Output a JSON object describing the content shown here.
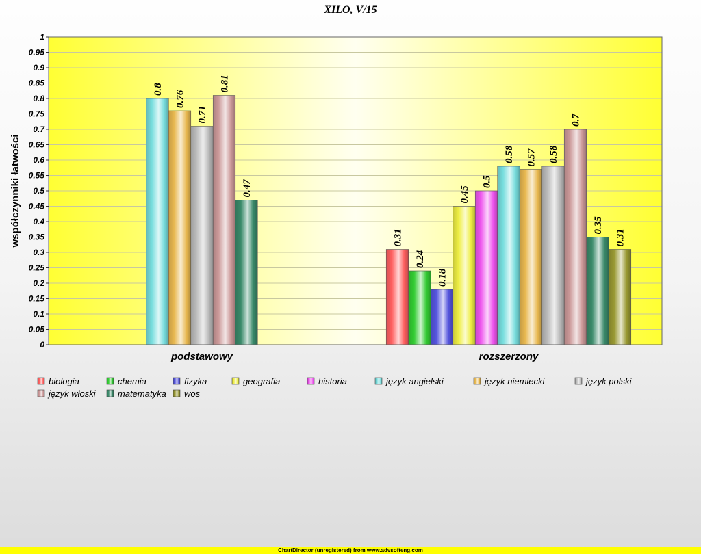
{
  "chart_data": {
    "type": "bar",
    "title": "XILO, V/15",
    "ylabel": "współczynniki łatwości",
    "xlabel": "",
    "ylim": [
      0,
      1
    ],
    "y_ticks": [
      "0",
      "0.05",
      "0.1",
      "0.15",
      "0.2",
      "0.25",
      "0.3",
      "0.35",
      "0.4",
      "0.45",
      "0.5",
      "0.55",
      "0.6",
      "0.65",
      "0.7",
      "0.75",
      "0.8",
      "0.85",
      "0.9",
      "0.95",
      "1"
    ],
    "grid": true,
    "legend_position": "bottom",
    "categories": [
      "podstawowy",
      "rozszerzony"
    ],
    "series": [
      {
        "name": "biologia",
        "values": [
          null,
          0.31
        ],
        "color": "#ff6060"
      },
      {
        "name": "chemia",
        "values": [
          null,
          0.24
        ],
        "color": "#33cc33"
      },
      {
        "name": "fizyka",
        "values": [
          null,
          0.18
        ],
        "color": "#5555dd"
      },
      {
        "name": "geografia",
        "values": [
          null,
          0.45
        ],
        "color": "#eeee44"
      },
      {
        "name": "historia",
        "values": [
          null,
          0.5
        ],
        "color": "#ee55ee"
      },
      {
        "name": "język angielski",
        "values": [
          0.8,
          0.58
        ],
        "color": "#77dddd"
      },
      {
        "name": "język niemiecki",
        "values": [
          0.76,
          0.57
        ],
        "color": "#e8b850"
      },
      {
        "name": "język polski",
        "values": [
          0.71,
          0.58
        ],
        "color": "#bbbbbb"
      },
      {
        "name": "język włoski",
        "values": [
          0.81,
          0.7
        ],
        "color": "#cc9999"
      },
      {
        "name": "matematyka",
        "values": [
          0.47,
          0.35
        ],
        "color": "#3a8a6a"
      },
      {
        "name": "wos",
        "values": [
          null,
          0.31
        ],
        "color": "#999933"
      }
    ]
  },
  "background_color": "#ffff33",
  "footer": "ChartDirector (unregistered) from www.advsofteng.com"
}
